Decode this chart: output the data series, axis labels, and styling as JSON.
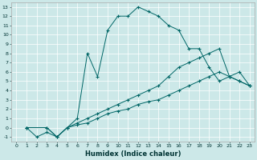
{
  "xlabel": "Humidex (Indice chaleur)",
  "bg_color": "#cce8e8",
  "line_color": "#006666",
  "xlim": [
    -0.5,
    23.5
  ],
  "ylim": [
    -1.5,
    13.5
  ],
  "xticks": [
    0,
    1,
    2,
    3,
    4,
    5,
    6,
    7,
    8,
    9,
    10,
    11,
    12,
    13,
    14,
    15,
    16,
    17,
    18,
    19,
    20,
    21,
    22,
    23
  ],
  "yticks": [
    -1,
    0,
    1,
    2,
    3,
    4,
    5,
    6,
    7,
    8,
    9,
    10,
    11,
    12,
    13
  ],
  "lines": [
    {
      "x": [
        1,
        2,
        3,
        4,
        5,
        6,
        7,
        8,
        9,
        10,
        11,
        12,
        13,
        14,
        15,
        16,
        17,
        18,
        19,
        20,
        21,
        22,
        23
      ],
      "y": [
        0,
        -1,
        -0.5,
        -1,
        0,
        1,
        8,
        5.5,
        10.5,
        12,
        12,
        13,
        12.5,
        12,
        11,
        10.5,
        8.5,
        8.5,
        6.5,
        5,
        5.5,
        5,
        4.5
      ]
    },
    {
      "x": [
        1,
        3,
        4,
        5,
        6,
        7,
        8,
        9,
        10,
        11,
        12,
        13,
        14,
        15,
        16,
        17,
        18,
        19,
        20,
        21,
        22,
        23
      ],
      "y": [
        0,
        0,
        -1,
        0,
        0.5,
        1,
        1.5,
        2,
        2.5,
        3,
        3.5,
        4,
        4.5,
        5.5,
        6.5,
        7,
        7.5,
        8,
        8.5,
        5.5,
        6,
        4.5
      ]
    },
    {
      "x": [
        1,
        3,
        4,
        5,
        6,
        7,
        8,
        9,
        10,
        11,
        12,
        13,
        14,
        15,
        16,
        17,
        18,
        19,
        20,
        21,
        22,
        23
      ],
      "y": [
        0,
        0,
        -1,
        0,
        0.3,
        0.5,
        1,
        1.5,
        1.8,
        2,
        2.5,
        2.8,
        3,
        3.5,
        4,
        4.5,
        5,
        5.5,
        6,
        5.5,
        5,
        4.5
      ]
    }
  ]
}
